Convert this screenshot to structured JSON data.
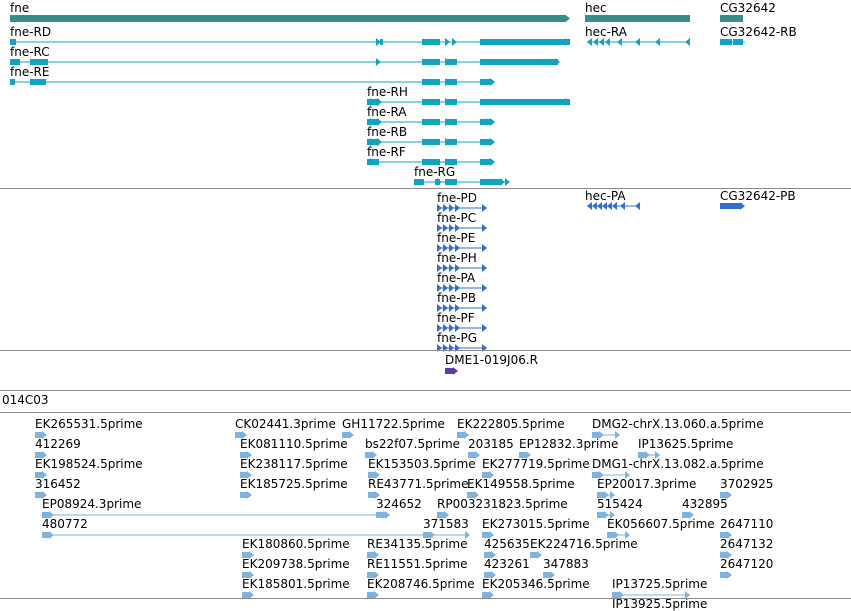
{
  "colors": {
    "gene": "#3a8c8c",
    "transcript": "#12a3bd",
    "protein": "#2f6fd2",
    "dme": "#5a3fa0",
    "est": "#7fb2dc",
    "divider": "#8a8a8a"
  },
  "genes": [
    "fne",
    "hec",
    "CG32642"
  ],
  "transcripts": [
    "fne-RD",
    "fne-RC",
    "fne-RE",
    "fne-RH",
    "fne-RA",
    "fne-RB",
    "fne-RF",
    "fne-RG",
    "hec-RA",
    "CG32642-RB"
  ],
  "proteins": [
    "fne-PD",
    "fne-PC",
    "fne-PE",
    "fne-PH",
    "fne-PA",
    "fne-PB",
    "fne-PF",
    "fne-PG",
    "hec-PA",
    "CG32642-PB"
  ],
  "dme_label": "DME1-019J06.R",
  "clone_label": "014C03",
  "ests": [
    "EK265531.5prime",
    "412269",
    "EK198524.5prime",
    "316452",
    "EP08924.3prime",
    "480772",
    "CK02441.3prime",
    "GH11722.5prime",
    "EK081110.5prime",
    "bs22f07.5prime",
    "EK238117.5prime",
    "EK153503.5prime",
    "EK185725.5prime",
    "RE43771.5prime",
    "324652",
    "371583",
    "EK180860.5prime",
    "RE34135.5prime",
    "EK209738.5prime",
    "RE11551.5prime",
    "EK185801.5prime",
    "EK208746.5prime",
    "EK222805.5prime",
    "203185",
    "EP12832.3prime",
    "EK277719.5prime",
    "EK149558.5prime",
    "RP003231823.5prime",
    "EK273015.5prime",
    "425635",
    "EK224716.5prime",
    "423261",
    "347883",
    "EK205346.5prime",
    "DMG2-chrX.13.060.a.5prime",
    "IP13625.5prime",
    "DMG1-chrX.13.082.a.5prime",
    "EP20017.3prime",
    "3702925",
    "515424",
    "432895",
    "EK056607.5prime",
    "2647110",
    "2647132",
    "2647120",
    "IP13725.5prime",
    "IP13925.5prime"
  ]
}
